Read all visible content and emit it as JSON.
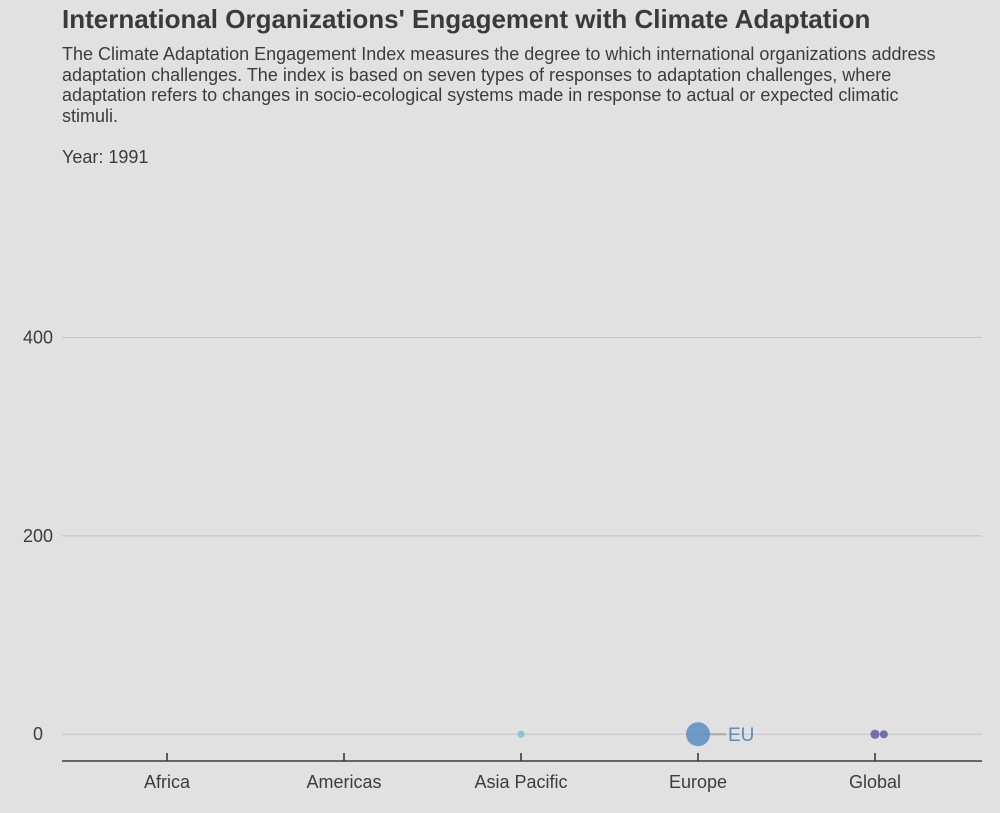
{
  "chart_data": {
    "type": "scatter",
    "title": "International Organizations' Engagement with Climate Adaptation",
    "subtitle": "The Climate Adaptation Engagement Index measures the degree to which international organizations address adaptation challenges. The index is based on seven types of responses to adaptation challenges, where adaptation refers to changes in socio-ecological systems made in response to actual or expected climatic stimuli.",
    "frame_label": "Year: 1991",
    "categories": [
      "Africa",
      "Americas",
      "Asia Pacific",
      "Europe",
      "Global"
    ],
    "y_ticks": [
      "0",
      "200",
      "400"
    ],
    "ylim": [
      -27,
      574
    ],
    "grid": true,
    "points": [
      {
        "category": "Asia Pacific",
        "offset": 0.0,
        "value": 0,
        "size": 1.2,
        "color": "#7fc0cc",
        "label": ""
      },
      {
        "category": "Europe",
        "offset": 0.0,
        "value": 0,
        "size": 10,
        "color": "#5b8dbf",
        "label": "EU"
      },
      {
        "category": "Global",
        "offset": 0.0,
        "value": 0,
        "size": 2.2,
        "color": "#5a5ea3",
        "label": ""
      },
      {
        "category": "Global",
        "offset": 0.05,
        "value": 0,
        "size": 1.6,
        "color": "#5a5ea3",
        "label": ""
      }
    ]
  }
}
